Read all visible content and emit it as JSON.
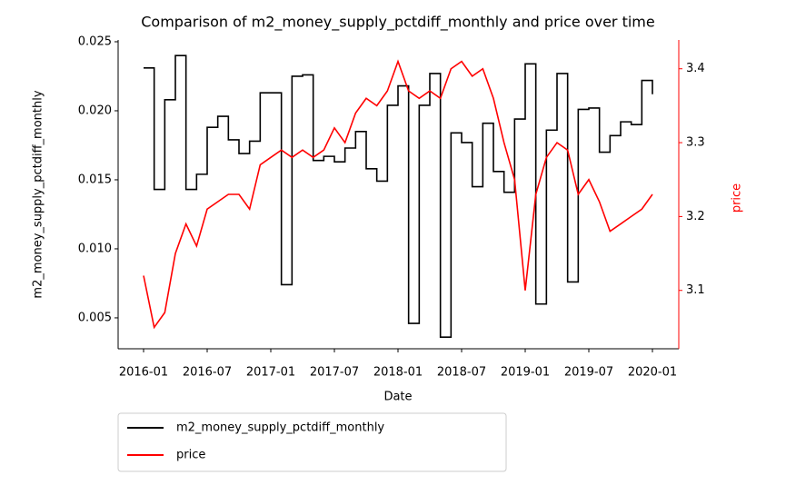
{
  "chart_data": {
    "type": "line",
    "title": "Comparison of m2_money_supply_pctdiff_monthly and price over time",
    "xlabel": "Date",
    "ylabel": "m2_money_supply_pctdiff_monthly",
    "y2label": "price",
    "x": [
      "2016-01",
      "2016-02",
      "2016-03",
      "2016-04",
      "2016-05",
      "2016-06",
      "2016-07",
      "2016-08",
      "2016-09",
      "2016-10",
      "2016-11",
      "2016-12",
      "2017-01",
      "2017-02",
      "2017-03",
      "2017-04",
      "2017-05",
      "2017-06",
      "2017-07",
      "2017-08",
      "2017-09",
      "2017-10",
      "2017-11",
      "2017-12",
      "2018-01",
      "2018-02",
      "2018-03",
      "2018-04",
      "2018-05",
      "2018-06",
      "2018-07",
      "2018-08",
      "2018-09",
      "2018-10",
      "2018-11",
      "2018-12",
      "2019-01",
      "2019-02",
      "2019-03",
      "2019-04",
      "2019-05",
      "2019-06",
      "2019-07",
      "2019-08",
      "2019-09",
      "2019-10",
      "2019-11",
      "2019-12",
      "2020-01"
    ],
    "xticks": [
      "2016-01",
      "2016-07",
      "2017-01",
      "2017-07",
      "2018-01",
      "2018-07",
      "2019-01",
      "2019-07",
      "2020-01"
    ],
    "series": [
      {
        "name": "m2_money_supply_pctdiff_monthly",
        "color": "#000000",
        "drawstyle": "steps-post",
        "values": [
          0.0231,
          0.0143,
          0.0208,
          0.024,
          0.0143,
          0.0154,
          0.0188,
          0.0196,
          0.0179,
          0.0169,
          0.0178,
          0.0213,
          0.0213,
          0.0074,
          0.0225,
          0.0226,
          0.0164,
          0.0167,
          0.0163,
          0.0173,
          0.0185,
          0.0158,
          0.0149,
          0.0204,
          0.0218,
          0.0046,
          0.0204,
          0.0227,
          0.0036,
          0.0184,
          0.0177,
          0.0145,
          0.0191,
          0.0156,
          0.0141,
          0.0194,
          0.0234,
          0.006,
          0.0186,
          0.0227,
          0.0076,
          0.0201,
          0.0202,
          0.017,
          0.0182,
          0.0192,
          0.019,
          0.0222,
          0.0212
        ]
      },
      {
        "name": "price",
        "color": "#ff0000",
        "axis": "y2",
        "values": [
          3.12,
          3.05,
          3.07,
          3.15,
          3.19,
          3.16,
          3.21,
          3.22,
          3.23,
          3.23,
          3.21,
          3.27,
          3.28,
          3.29,
          3.28,
          3.29,
          3.28,
          3.29,
          3.32,
          3.3,
          3.34,
          3.36,
          3.35,
          3.37,
          3.41,
          3.37,
          3.36,
          3.37,
          3.36,
          3.4,
          3.41,
          3.39,
          3.4,
          3.36,
          3.3,
          3.25,
          3.1,
          3.23,
          3.28,
          3.3,
          3.29,
          3.23,
          3.25,
          3.22,
          3.18,
          3.19,
          3.2,
          3.21,
          3.23
        ]
      }
    ],
    "ylim": [
      0.00276,
      0.02513
    ],
    "yticks": [
      0.005,
      {
        "value": 0.01,
        "label": "0.010"
      },
      0.015,
      {
        "value": 0.02,
        "label": "0.020"
      },
      0.025
    ],
    "y2lim": [
      3.021,
      3.439
    ],
    "y2ticks": [
      3.1,
      3.2,
      3.3,
      3.4
    ],
    "y2color": "#ff0000",
    "legend": "below"
  }
}
